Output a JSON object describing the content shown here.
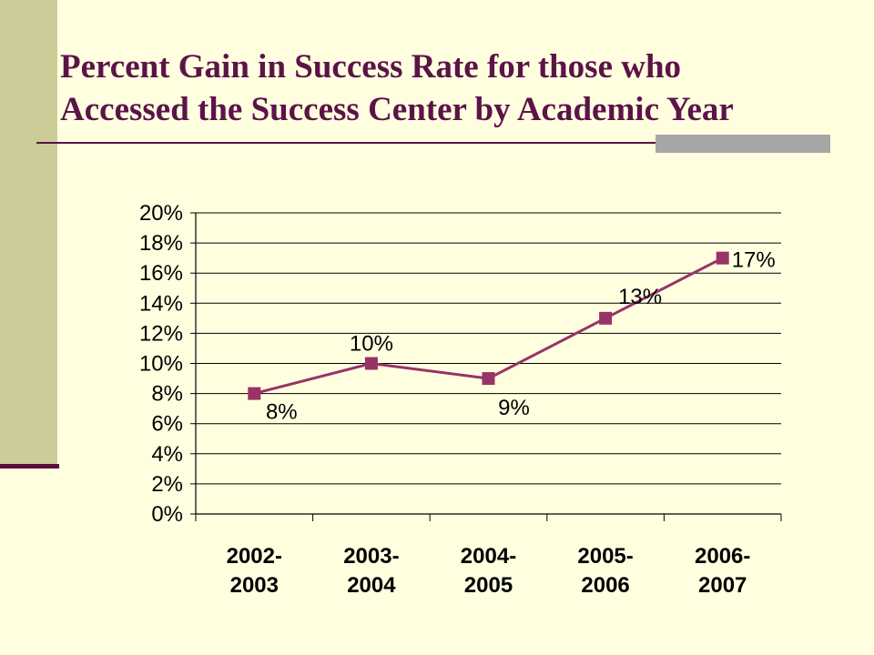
{
  "title": {
    "line1": "Percent Gain in Success Rate for those who",
    "line2": "Accessed the Success Center by Academic Year"
  },
  "colors": {
    "background": "#FFFFE0",
    "sidebar": "#CCCC99",
    "title": "#5C1348",
    "accent": "#A6A6A6",
    "series": "#993366"
  },
  "chart_data": {
    "type": "line",
    "title": "",
    "xlabel": "",
    "ylabel": "",
    "categories": [
      [
        "2002-",
        "2003"
      ],
      [
        "2003-",
        "2004"
      ],
      [
        "2004-",
        "2005"
      ],
      [
        "2005-",
        "2006"
      ],
      [
        "2006-",
        "2007"
      ]
    ],
    "series": [
      {
        "values": [
          8,
          10,
          9,
          13,
          17
        ],
        "data_labels": [
          "8%",
          "10%",
          "9%",
          "13%",
          "17%"
        ],
        "marker": "square"
      }
    ],
    "y_ticks": [
      "0%",
      "2%",
      "4%",
      "6%",
      "8%",
      "10%",
      "12%",
      "14%",
      "16%",
      "18%",
      "20%"
    ],
    "ylim": [
      0,
      20
    ],
    "y_step": 2,
    "grid": true,
    "legend": "none"
  }
}
